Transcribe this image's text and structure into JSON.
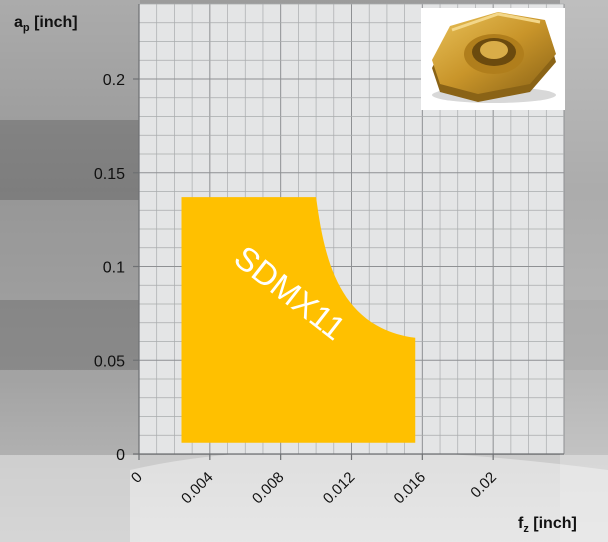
{
  "chart_data": {
    "type": "area",
    "x_axis": {
      "label_main": "f",
      "label_sub": "z",
      "label_unit": " [inch]",
      "ticks": [
        0,
        0.004,
        0.008,
        0.012,
        0.016,
        0.02
      ],
      "tick_labels": [
        "0",
        "0.004",
        "0.008",
        "0.012",
        "0.016",
        "0.02"
      ],
      "range": [
        0,
        0.024
      ]
    },
    "y_axis": {
      "label_main": "a",
      "label_sub": "p",
      "label_unit": " [inch]",
      "ticks": [
        0,
        0.05,
        0.1,
        0.15,
        0.2
      ],
      "tick_labels": [
        "0",
        "0.05",
        "0.1",
        "0.15",
        "0.2"
      ],
      "range": [
        0,
        0.24
      ]
    },
    "grid": true,
    "region": {
      "label": "SDMX11",
      "color": "#ffc000",
      "fz_min": 0.0024,
      "fz_max": 0.0156,
      "ap_min": 0.006,
      "ap_max": 0.137,
      "corner_fz": 0.01,
      "corner_ap": 0.062
    },
    "inset_image": "insert-tool-photo"
  },
  "colors": {
    "plot_background": "#e4e5e6",
    "region_fill": "#ffc000",
    "region_text": "#ffffff"
  }
}
